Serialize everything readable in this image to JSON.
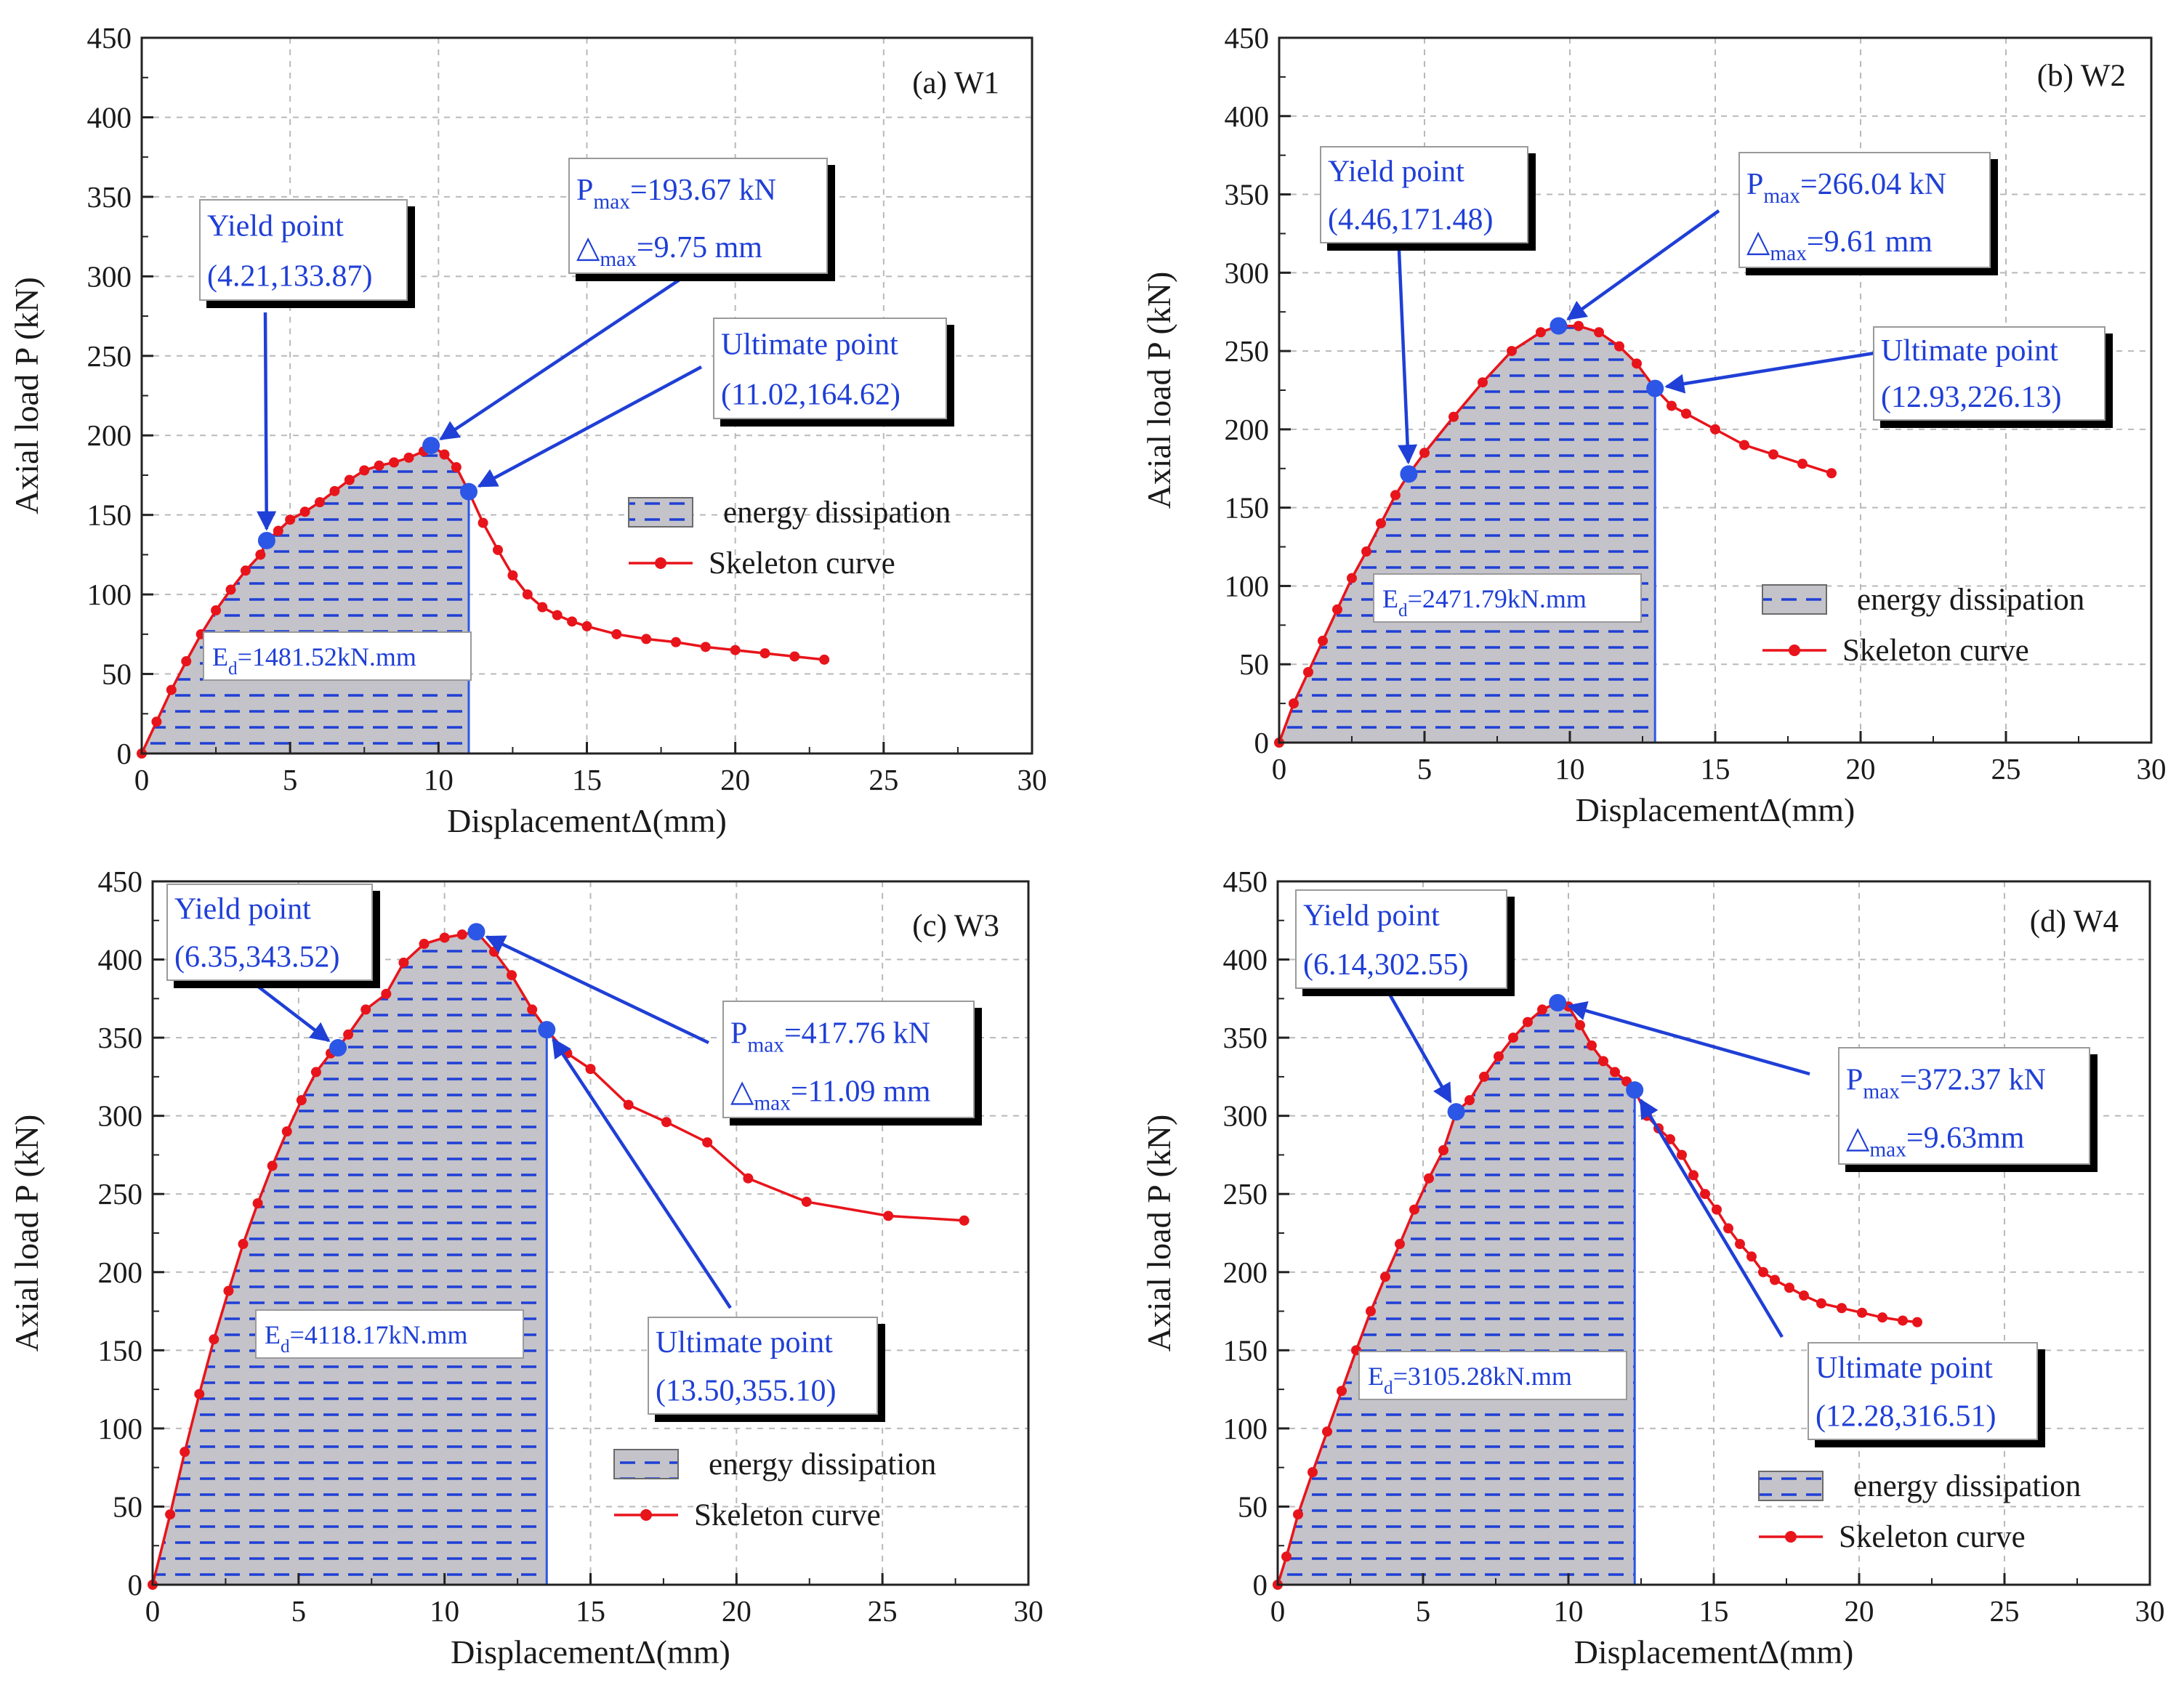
{
  "chart_data": [
    {
      "type": "line",
      "panel_label": "(a) W1",
      "xlabel": "DisplacementΔ(mm)",
      "ylabel": "Axial load P (kN)",
      "xlim": [
        0,
        30
      ],
      "ylim": [
        0,
        450
      ],
      "xticks": [
        "0",
        "5",
        "10",
        "15",
        "20",
        "25",
        "30"
      ],
      "yticks": [
        "0",
        "50",
        "100",
        "150",
        "200",
        "250",
        "300",
        "350",
        "400",
        "450"
      ],
      "grid": true,
      "legend": {
        "position": "center-right",
        "entries": [
          "energy dissipation",
          "Skeleton curve"
        ]
      },
      "energy_text": {
        "main": "E",
        "sub": "d",
        "rest": "=1481.52kN.mm"
      },
      "area_limit_x": 11.02,
      "series": [
        {
          "name": "Skeleton curve",
          "color": "#e8141b",
          "x": [
            0,
            0.5,
            1.0,
            1.5,
            2.0,
            2.5,
            3.0,
            3.5,
            4.0,
            4.21,
            4.6,
            5.0,
            5.5,
            6.0,
            6.5,
            7.0,
            7.5,
            8.0,
            8.5,
            9.0,
            9.5,
            9.75,
            10.2,
            10.6,
            11.02,
            11.5,
            12.0,
            12.5,
            13.0,
            13.5,
            14.0,
            14.5,
            15.0,
            16.0,
            17.0,
            18.0,
            19.0,
            20.0,
            21.0,
            22.0,
            23.0
          ],
          "y": [
            0,
            20,
            40,
            58,
            75,
            90,
            103,
            115,
            125,
            133.87,
            140,
            147,
            152,
            158,
            165,
            172,
            178,
            181,
            183,
            186,
            190,
            193.67,
            188,
            180,
            164.62,
            145,
            128,
            112,
            100,
            92,
            87,
            83,
            80,
            75,
            72,
            70,
            67,
            65,
            63,
            61,
            59
          ]
        }
      ],
      "annotations": [
        {
          "lines": [
            {
              "text": "Yield point"
            },
            {
              "text": "(4.21,133.87)"
            }
          ],
          "point": [
            4.21,
            133.87
          ]
        },
        {
          "lines": [
            {
              "main": "P",
              "sub": "max",
              "rest": "=193.67 kN"
            },
            {
              "main": "△",
              "sub": "max",
              "rest": "=9.75 mm"
            }
          ],
          "point": [
            9.75,
            193.67
          ]
        },
        {
          "lines": [
            {
              "text": "Ultimate point"
            },
            {
              "text": "(11.02,164.62)"
            }
          ],
          "point": [
            11.02,
            164.62
          ]
        }
      ]
    },
    {
      "type": "line",
      "panel_label": "(b) W2",
      "xlabel": "DisplacementΔ(mm)",
      "ylabel": "Axial load P (kN)",
      "xlim": [
        0,
        30
      ],
      "ylim": [
        0,
        450
      ],
      "xticks": [
        "0",
        "5",
        "10",
        "15",
        "20",
        "25",
        "30"
      ],
      "yticks": [
        "0",
        "50",
        "100",
        "150",
        "200",
        "250",
        "300",
        "350",
        "400",
        "450"
      ],
      "grid": true,
      "legend": {
        "position": "bottom-right",
        "entries": [
          "energy dissipation",
          "Skeleton curve"
        ]
      },
      "energy_text": {
        "main": "E",
        "sub": "d",
        "rest": "=2471.79kN.mm"
      },
      "area_limit_x": 12.93,
      "series": [
        {
          "name": "Skeleton curve",
          "color": "#e8141b",
          "x": [
            0,
            0.5,
            1.0,
            1.5,
            2.0,
            2.5,
            3.0,
            3.5,
            4.0,
            4.46,
            5.0,
            6.0,
            7.0,
            8.0,
            9.0,
            9.61,
            10.3,
            11.0,
            11.7,
            12.3,
            12.93,
            13.5,
            14.0,
            15.0,
            16.0,
            17.0,
            18.0,
            19.0
          ],
          "y": [
            0,
            25,
            45,
            65,
            85,
            105,
            122,
            140,
            158,
            171.48,
            185,
            208,
            230,
            250,
            262,
            266.04,
            266,
            262,
            253,
            242,
            226.13,
            215,
            210,
            200,
            190,
            184,
            178,
            172
          ]
        }
      ],
      "annotations": [
        {
          "lines": [
            {
              "text": "Yield point"
            },
            {
              "text": "(4.46,171.48)"
            }
          ],
          "point": [
            4.46,
            171.48
          ]
        },
        {
          "lines": [
            {
              "main": "P",
              "sub": "max",
              "rest": "=266.04 kN"
            },
            {
              "main": "△",
              "sub": "max",
              "rest": "=9.61 mm"
            }
          ],
          "point": [
            9.61,
            266.04
          ]
        },
        {
          "lines": [
            {
              "text": "Ultimate point"
            },
            {
              "text": "(12.93,226.13)"
            }
          ],
          "point": [
            12.93,
            226.13
          ]
        }
      ]
    },
    {
      "type": "line",
      "panel_label": "(c) W3",
      "xlabel": "DisplacementΔ(mm)",
      "ylabel": "Axial load P (kN)",
      "xlim": [
        0,
        30
      ],
      "ylim": [
        0,
        450
      ],
      "xticks": [
        "0",
        "5",
        "10",
        "15",
        "20",
        "25",
        "30"
      ],
      "yticks": [
        "0",
        "50",
        "100",
        "150",
        "200",
        "250",
        "300",
        "350",
        "400",
        "450"
      ],
      "grid": true,
      "legend": {
        "position": "bottom-right",
        "entries": [
          "energy dissipation",
          "Skeleton curve"
        ]
      },
      "energy_text": {
        "main": "E",
        "sub": "d",
        "rest": "=4118.17kN.mm"
      },
      "area_limit_x": 13.5,
      "series": [
        {
          "name": "Skeleton curve",
          "color": "#e8141b",
          "x": [
            0,
            0.6,
            1.1,
            1.6,
            2.1,
            2.6,
            3.1,
            3.6,
            4.1,
            4.6,
            5.1,
            5.6,
            6.1,
            6.35,
            6.7,
            7.3,
            8.0,
            8.6,
            9.3,
            10.0,
            10.6,
            11.09,
            11.7,
            12.3,
            13.0,
            13.5,
            14.2,
            15.0,
            16.3,
            17.6,
            19.0,
            20.4,
            22.4,
            25.2,
            27.8
          ],
          "y": [
            0,
            45,
            85,
            122,
            157,
            188,
            218,
            244,
            268,
            290,
            310,
            328,
            340,
            343.52,
            352,
            368,
            378,
            398,
            410,
            414,
            416,
            417.76,
            405,
            390,
            368,
            355.1,
            340,
            330,
            307,
            296,
            283,
            260,
            245,
            236,
            233
          ]
        }
      ],
      "annotations": [
        {
          "lines": [
            {
              "text": "Yield point"
            },
            {
              "text": "(6.35,343.52)"
            }
          ],
          "point": [
            6.35,
            343.52
          ]
        },
        {
          "lines": [
            {
              "main": "P",
              "sub": "max",
              "rest": "=417.76 kN"
            },
            {
              "main": "△",
              "sub": "max",
              "rest": "=11.09 mm"
            }
          ],
          "point": [
            11.09,
            417.76
          ]
        },
        {
          "lines": [
            {
              "text": "Ultimate point"
            },
            {
              "text": "(13.50,355.10)"
            }
          ],
          "point": [
            13.5,
            355.1
          ]
        }
      ]
    },
    {
      "type": "line",
      "panel_label": "(d) W4",
      "xlabel": "DisplacementΔ(mm)",
      "ylabel": "Axial load P (kN)",
      "xlim": [
        0,
        30
      ],
      "ylim": [
        0,
        450
      ],
      "xticks": [
        "0",
        "5",
        "10",
        "15",
        "20",
        "25",
        "30"
      ],
      "yticks": [
        "0",
        "50",
        "100",
        "150",
        "200",
        "250",
        "300",
        "350",
        "400",
        "450"
      ],
      "grid": true,
      "legend": {
        "position": "bottom-right",
        "entries": [
          "energy dissipation",
          "Skeleton curve"
        ]
      },
      "energy_text": {
        "main": "E",
        "sub": "d",
        "rest": "=3105.28kN.mm"
      },
      "area_limit_x": 12.28,
      "series": [
        {
          "name": "Skeleton curve",
          "color": "#e8141b",
          "x": [
            0,
            0.3,
            0.7,
            1.2,
            1.7,
            2.2,
            2.7,
            3.2,
            3.7,
            4.2,
            4.7,
            5.2,
            5.7,
            6.14,
            6.6,
            7.1,
            7.6,
            8.1,
            8.6,
            9.1,
            9.63,
            10.0,
            10.4,
            10.8,
            11.2,
            11.6,
            12.0,
            12.28,
            12.7,
            13.1,
            13.5,
            13.9,
            14.3,
            14.7,
            15.1,
            15.5,
            15.9,
            16.3,
            16.7,
            17.1,
            17.6,
            18.1,
            18.7,
            19.4,
            20.1,
            20.8,
            21.5,
            22.0
          ],
          "y": [
            0,
            18,
            45,
            72,
            98,
            124,
            150,
            175,
            197,
            218,
            240,
            260,
            278,
            302.55,
            310,
            325,
            338,
            350,
            360,
            368,
            372.37,
            370,
            358,
            345,
            335,
            328,
            322,
            316.51,
            300,
            292,
            285,
            275,
            262,
            250,
            240,
            228,
            218,
            210,
            200,
            195,
            190,
            185,
            180,
            177,
            174,
            171,
            169,
            168
          ]
        }
      ],
      "annotations": [
        {
          "lines": [
            {
              "text": "Yield point"
            },
            {
              "text": "(6.14,302.55)"
            }
          ],
          "point": [
            6.14,
            302.55
          ]
        },
        {
          "lines": [
            {
              "main": "P",
              "sub": "max",
              "rest": "=372.37 kN"
            },
            {
              "main": "△",
              "sub": "max",
              "rest": "=9.63mm"
            }
          ],
          "point": [
            9.63,
            372.37
          ]
        },
        {
          "lines": [
            {
              "text": "Ultimate point"
            },
            {
              "text": "(12.28,316.51)"
            }
          ],
          "point": [
            12.28,
            316.51
          ]
        }
      ]
    }
  ],
  "colors": {
    "curve": "#e8141b",
    "annotation": "#1f3fd6",
    "marker": "#2c56e6",
    "area_fill": "#c3c3c9",
    "area_dash": "#1f3fd6"
  }
}
